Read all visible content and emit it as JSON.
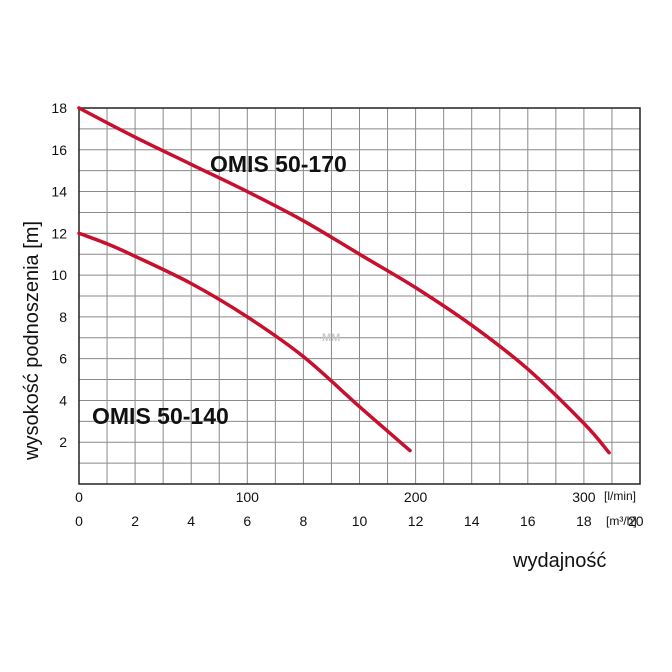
{
  "chart_data": {
    "type": "line",
    "xlabel": "wydajność",
    "ylabel": "wysokość podnoszenia [m]",
    "x_unit": "[m³/h]",
    "x2_unit": "[l/min]",
    "xlim": [
      0,
      20
    ],
    "ylim": [
      0,
      18
    ],
    "grid": true,
    "yticks": [
      "2",
      "4",
      "6",
      "8",
      "10",
      "12",
      "14",
      "16",
      "18"
    ],
    "xticks": [
      "0",
      "2",
      "4",
      "6",
      "8",
      "10",
      "12",
      "14",
      "16",
      "18",
      "20"
    ],
    "x2ticks": [
      "0",
      "100",
      "200",
      "300"
    ],
    "x2_per_x": 16.6667,
    "watermark": "MM",
    "series": [
      {
        "name": "OMIS 50-170",
        "color": "#c8102e",
        "x": [
          0,
          2,
          4,
          6,
          8,
          10,
          12,
          14,
          16,
          18,
          18.9
        ],
        "y": [
          18,
          16.6,
          15.3,
          14,
          12.6,
          11,
          9.4,
          7.6,
          5.5,
          2.9,
          1.5
        ]
      },
      {
        "name": "OMIS 50-140",
        "color": "#c8102e",
        "x": [
          0,
          1,
          2,
          4,
          6,
          8,
          10,
          11.8
        ],
        "y": [
          12,
          11.5,
          10.9,
          9.6,
          8.0,
          6.1,
          3.7,
          1.6
        ]
      }
    ]
  }
}
